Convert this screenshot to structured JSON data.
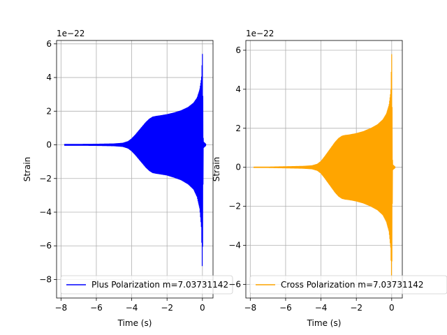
{
  "chart_data": [
    {
      "type": "line",
      "title": "",
      "xlabel": "Time (s)",
      "ylabel": "Strain",
      "offset_label": "1e−22",
      "xlim": [
        -8.25,
        0.6
      ],
      "ylim": [
        -9.1,
        6.2
      ],
      "xticks": [
        -8,
        -6,
        -4,
        -2,
        0
      ],
      "yticks": [
        -8,
        -6,
        -4,
        -2,
        0,
        2,
        4,
        6
      ],
      "grid": true,
      "legend_position": "lower-left",
      "series": [
        {
          "name": "Plus Polarization m=7.03731142",
          "color": "#0000ff",
          "envelope": {
            "x": [
              -7.8,
              -7.0,
              -6.0,
              -5.0,
              -4.5,
              -4.2,
              -4.0,
              -3.8,
              -3.6,
              -3.4,
              -3.2,
              -3.0,
              -2.8,
              -2.6,
              -2.4,
              -2.0,
              -1.6,
              -1.2,
              -0.8,
              -0.5,
              -0.3,
              -0.15,
              -0.05,
              0.0,
              0.05,
              0.2
            ],
            "upper": [
              0.05,
              0.05,
              0.06,
              0.08,
              0.12,
              0.22,
              0.38,
              0.6,
              0.85,
              1.1,
              1.35,
              1.55,
              1.68,
              1.72,
              1.75,
              1.82,
              1.92,
              2.05,
              2.25,
              2.5,
              2.8,
              3.3,
              4.0,
              5.4,
              0.2,
              0.05
            ],
            "lower": [
              -0.05,
              -0.05,
              -0.06,
              -0.08,
              -0.12,
              -0.22,
              -0.38,
              -0.6,
              -0.85,
              -1.1,
              -1.35,
              -1.55,
              -1.68,
              -1.72,
              -1.75,
              -1.82,
              -1.95,
              -2.1,
              -2.35,
              -2.65,
              -3.1,
              -3.8,
              -5.0,
              -7.9,
              -0.2,
              -0.05
            ]
          }
        }
      ]
    },
    {
      "type": "line",
      "title": "",
      "xlabel": "Time (s)",
      "ylabel": "Strain",
      "offset_label": "1e−22",
      "xlim": [
        -8.25,
        0.6
      ],
      "ylim": [
        -6.7,
        6.5
      ],
      "xticks": [
        -8,
        -6,
        -4,
        -2,
        0
      ],
      "yticks": [
        -6,
        -4,
        -2,
        0,
        2,
        4,
        6
      ],
      "grid": true,
      "legend_position": "lower-left",
      "series": [
        {
          "name": "Cross Polarization m=7.03731142",
          "color": "#ffa500",
          "envelope": {
            "x": [
              -7.8,
              -7.0,
              -6.0,
              -5.0,
              -4.5,
              -4.2,
              -4.0,
              -3.8,
              -3.6,
              -3.4,
              -3.2,
              -3.0,
              -2.8,
              -2.6,
              -2.4,
              -2.0,
              -1.6,
              -1.2,
              -0.8,
              -0.5,
              -0.3,
              -0.15,
              -0.05,
              0.0,
              0.05,
              0.2
            ],
            "upper": [
              0.03,
              0.03,
              0.05,
              0.07,
              0.1,
              0.18,
              0.32,
              0.55,
              0.8,
              1.05,
              1.3,
              1.5,
              1.62,
              1.66,
              1.68,
              1.75,
              1.85,
              2.0,
              2.2,
              2.45,
              2.75,
              3.2,
              3.9,
              5.8,
              0.15,
              0.03
            ],
            "lower": [
              -0.03,
              -0.03,
              -0.05,
              -0.07,
              -0.1,
              -0.18,
              -0.32,
              -0.55,
              -0.8,
              -1.05,
              -1.3,
              -1.5,
              -1.62,
              -1.66,
              -1.68,
              -1.75,
              -1.85,
              -2.0,
              -2.2,
              -2.45,
              -2.8,
              -3.3,
              -4.2,
              -6.3,
              -0.15,
              -0.03
            ]
          }
        }
      ]
    }
  ]
}
